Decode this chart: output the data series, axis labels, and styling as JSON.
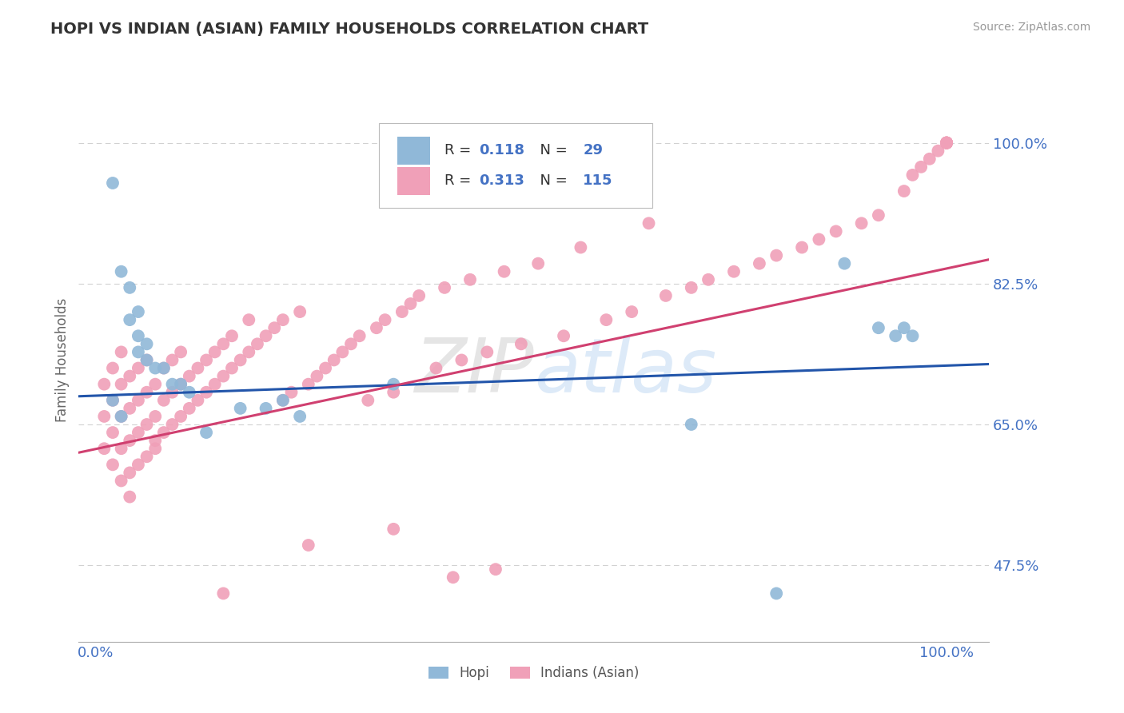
{
  "title": "HOPI VS INDIAN (ASIAN) FAMILY HOUSEHOLDS CORRELATION CHART",
  "source_text": "Source: ZipAtlas.com",
  "ylabel": "Family Households",
  "watermark": "ZIPatlas",
  "hopi_R": 0.118,
  "hopi_N": 29,
  "indian_R": 0.313,
  "indian_N": 115,
  "hopi_color": "#90b8d8",
  "indian_color": "#f0a0b8",
  "hopi_line_color": "#2255aa",
  "indian_line_color": "#d04070",
  "background_color": "#ffffff",
  "grid_color": "#cccccc",
  "title_color": "#333333",
  "axis_tick_color": "#4472c4",
  "legend_value_color": "#4472c4",
  "ytick_vals": [
    0.475,
    0.65,
    0.825,
    1.0
  ],
  "ytick_labels": [
    "47.5%",
    "65.0%",
    "82.5%",
    "100.0%"
  ],
  "xmin": -0.02,
  "xmax": 1.05,
  "ymin": 0.38,
  "ymax": 1.08,
  "hopi_line_x0": 0.0,
  "hopi_line_y0": 0.685,
  "hopi_line_x1": 1.0,
  "hopi_line_y1": 0.725,
  "indian_line_x0": 0.0,
  "indian_line_y0": 0.615,
  "indian_line_x1": 1.0,
  "indian_line_y1": 0.855,
  "hopi_x": [
    0.02,
    0.03,
    0.04,
    0.04,
    0.05,
    0.05,
    0.06,
    0.06,
    0.07,
    0.08,
    0.09,
    0.1,
    0.11,
    0.13,
    0.17,
    0.2,
    0.22,
    0.24,
    0.35,
    0.7,
    0.8,
    0.88,
    0.92,
    0.94,
    0.95,
    0.96,
    0.03,
    0.02,
    0.05
  ],
  "hopi_y": [
    0.95,
    0.84,
    0.82,
    0.78,
    0.79,
    0.76,
    0.75,
    0.73,
    0.72,
    0.72,
    0.7,
    0.7,
    0.69,
    0.64,
    0.67,
    0.67,
    0.68,
    0.66,
    0.7,
    0.65,
    0.44,
    0.85,
    0.77,
    0.76,
    0.77,
    0.76,
    0.66,
    0.68,
    0.74
  ],
  "indian_x": [
    0.01,
    0.01,
    0.01,
    0.02,
    0.02,
    0.02,
    0.02,
    0.03,
    0.03,
    0.03,
    0.03,
    0.03,
    0.04,
    0.04,
    0.04,
    0.04,
    0.04,
    0.05,
    0.05,
    0.05,
    0.05,
    0.06,
    0.06,
    0.06,
    0.06,
    0.07,
    0.07,
    0.07,
    0.07,
    0.08,
    0.08,
    0.08,
    0.09,
    0.09,
    0.09,
    0.1,
    0.1,
    0.1,
    0.11,
    0.11,
    0.12,
    0.12,
    0.13,
    0.13,
    0.14,
    0.14,
    0.15,
    0.15,
    0.16,
    0.16,
    0.17,
    0.18,
    0.18,
    0.19,
    0.2,
    0.21,
    0.22,
    0.22,
    0.23,
    0.24,
    0.25,
    0.26,
    0.27,
    0.28,
    0.29,
    0.3,
    0.31,
    0.32,
    0.33,
    0.34,
    0.35,
    0.36,
    0.37,
    0.38,
    0.4,
    0.41,
    0.43,
    0.44,
    0.46,
    0.48,
    0.5,
    0.52,
    0.55,
    0.57,
    0.6,
    0.63,
    0.65,
    0.67,
    0.7,
    0.72,
    0.75,
    0.78,
    0.8,
    0.83,
    0.85,
    0.87,
    0.9,
    0.92,
    0.95,
    0.96,
    0.97,
    0.98,
    0.99,
    1.0,
    1.0,
    1.0,
    1.0,
    1.0,
    1.0,
    1.0,
    0.15,
    0.25,
    0.35,
    0.42,
    0.47
  ],
  "indian_y": [
    0.62,
    0.66,
    0.7,
    0.6,
    0.64,
    0.68,
    0.72,
    0.58,
    0.62,
    0.66,
    0.7,
    0.74,
    0.59,
    0.63,
    0.67,
    0.71,
    0.56,
    0.6,
    0.64,
    0.68,
    0.72,
    0.61,
    0.65,
    0.69,
    0.73,
    0.62,
    0.66,
    0.7,
    0.63,
    0.64,
    0.68,
    0.72,
    0.65,
    0.69,
    0.73,
    0.66,
    0.7,
    0.74,
    0.67,
    0.71,
    0.68,
    0.72,
    0.69,
    0.73,
    0.7,
    0.74,
    0.71,
    0.75,
    0.72,
    0.76,
    0.73,
    0.74,
    0.78,
    0.75,
    0.76,
    0.77,
    0.68,
    0.78,
    0.69,
    0.79,
    0.7,
    0.71,
    0.72,
    0.73,
    0.74,
    0.75,
    0.76,
    0.68,
    0.77,
    0.78,
    0.69,
    0.79,
    0.8,
    0.81,
    0.72,
    0.82,
    0.73,
    0.83,
    0.74,
    0.84,
    0.75,
    0.85,
    0.76,
    0.87,
    0.78,
    0.79,
    0.9,
    0.81,
    0.82,
    0.83,
    0.84,
    0.85,
    0.86,
    0.87,
    0.88,
    0.89,
    0.9,
    0.91,
    0.94,
    0.96,
    0.97,
    0.98,
    0.99,
    1.0,
    1.0,
    1.0,
    1.0,
    1.0,
    1.0,
    1.0,
    0.44,
    0.5,
    0.52,
    0.46,
    0.47
  ]
}
